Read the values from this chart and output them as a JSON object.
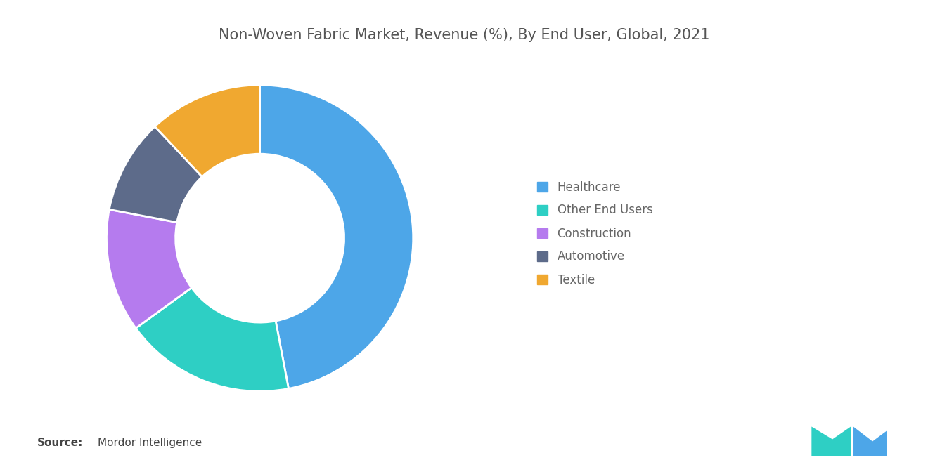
{
  "title": "Non-Woven Fabric Market, Revenue (%), By End User, Global, 2021",
  "segments": [
    "Healthcare",
    "Other End Users",
    "Construction",
    "Automotive",
    "Textile"
  ],
  "values": [
    47,
    18,
    13,
    10,
    12
  ],
  "colors": [
    "#4DA6E8",
    "#2ECFC4",
    "#B57BEE",
    "#5D6B8A",
    "#F0A830"
  ],
  "start_angle": 90,
  "donut_width": 0.45,
  "source_bold": "Source:",
  "source_text": "Mordor Intelligence",
  "background_color": "#FFFFFF",
  "title_fontsize": 15,
  "legend_fontsize": 12,
  "source_fontsize": 11,
  "logo_color1": "#2ECFC4",
  "logo_color2": "#4DA6E8"
}
